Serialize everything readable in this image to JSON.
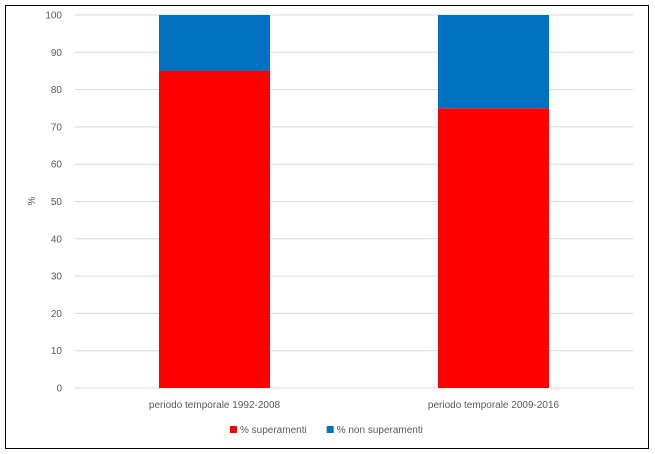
{
  "chart_data": {
    "type": "bar",
    "stacked": true,
    "title": "",
    "xlabel": "",
    "ylabel": "%",
    "ylim": [
      0,
      100
    ],
    "yticks": [
      0,
      10,
      20,
      30,
      40,
      50,
      60,
      70,
      80,
      90,
      100
    ],
    "grid": true,
    "legend_position": "bottom",
    "categories": [
      "periodo temporale 1992-2008",
      "periodo temporale 2009-2016"
    ],
    "series": [
      {
        "name": "% superamenti",
        "color": "#ff0000",
        "values": [
          85,
          75
        ]
      },
      {
        "name": "% non superamenti",
        "color": "#0070c0",
        "values": [
          15,
          25
        ]
      }
    ]
  }
}
